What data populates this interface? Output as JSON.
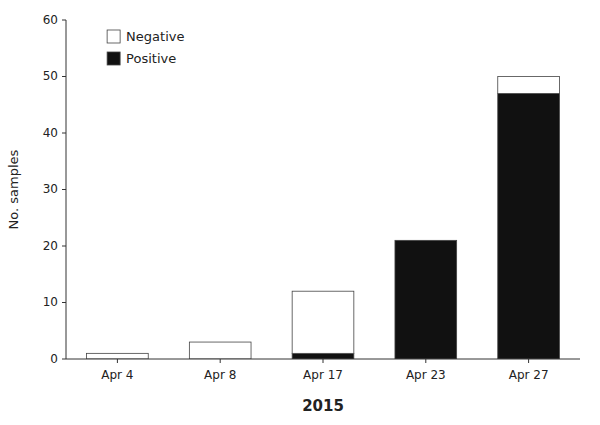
{
  "chart_data": {
    "type": "bar",
    "stacked": true,
    "xlabel": "2015",
    "ylabel": "No. samples",
    "categories": [
      "Apr 4",
      "Apr 8",
      "Apr 17",
      "Apr 23",
      "Apr 27"
    ],
    "series": [
      {
        "name": "Positive",
        "color": "#111111",
        "values": [
          0,
          0,
          1,
          21,
          47
        ]
      },
      {
        "name": "Negative",
        "color": "#ffffff",
        "values": [
          1,
          3,
          11,
          0,
          3
        ]
      }
    ],
    "ylim": [
      0,
      60
    ],
    "yticks": [
      0,
      10,
      20,
      30,
      40,
      50,
      60
    ],
    "grid": false,
    "legend": "upper left"
  }
}
